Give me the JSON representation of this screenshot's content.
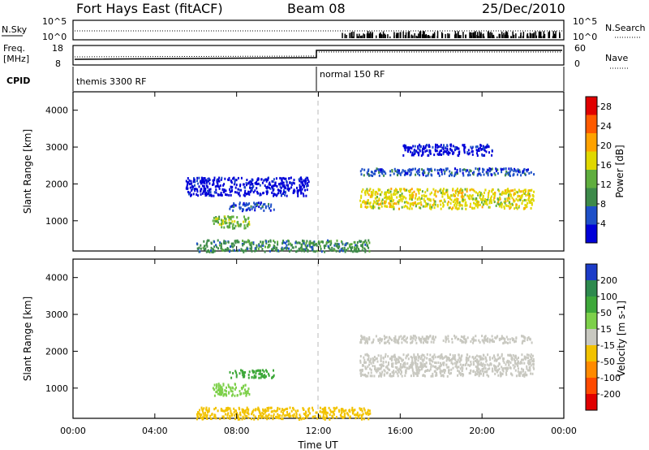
{
  "header": {
    "station": "Fort Hays East (fitACF)",
    "beam": "Beam 08",
    "date": "25/Dec/2010"
  },
  "noise_panel": {
    "left_label": "N.Sky",
    "right_label": "N.Search",
    "left_ticks": [
      "10^5",
      "10^0"
    ],
    "right_ticks": [
      "10^5",
      "10^0"
    ]
  },
  "freq_panel": {
    "left_label_1": "Freq.",
    "left_label_2": "[MHz]",
    "left_ticks": [
      "18",
      "8"
    ],
    "right_ticks": [
      "60",
      "0"
    ],
    "right_label": "Nave"
  },
  "cpid_panel": {
    "label": "CPID",
    "modes": [
      {
        "name": "themis 3300 RF",
        "start_hour": 0,
        "end_hour": 12
      },
      {
        "name": "normal 150 RF",
        "start_hour": 12,
        "end_hour": 24
      }
    ]
  },
  "chart_data": [
    {
      "type": "heatmap",
      "title": "",
      "xlabel": "",
      "ylabel": "Slant Range [km]",
      "x_range_hours": [
        0,
        24
      ],
      "ylim": [
        180,
        4500
      ],
      "y_ticks": [
        1000,
        2000,
        3000,
        4000
      ],
      "colorbar": {
        "label": "Power [dB]",
        "ticks": [
          4,
          8,
          12,
          16,
          20,
          24,
          28
        ],
        "range": [
          0,
          30
        ],
        "colors": [
          "#0000d8",
          "#1e50c8",
          "#3d8a4a",
          "#5fae3e",
          "#e0d800",
          "#ffa200",
          "#ff5a00",
          "#e00000"
        ]
      },
      "echo_regions": [
        {
          "t0": 6.8,
          "t1": 8.6,
          "r0": 820,
          "r1": 1150,
          "level": 14
        },
        {
          "t0": 7.6,
          "t1": 9.8,
          "r0": 1300,
          "r1": 1520,
          "level": 5
        },
        {
          "t0": 5.5,
          "t1": 11.5,
          "r0": 1700,
          "r1": 2200,
          "level": 3
        },
        {
          "t0": 14.0,
          "t1": 22.5,
          "r0": 1350,
          "r1": 1900,
          "level": 17
        },
        {
          "t0": 14.0,
          "t1": 22.5,
          "r0": 2250,
          "r1": 2450,
          "level": 6
        },
        {
          "t0": 16.0,
          "t1": 20.5,
          "r0": 2800,
          "r1": 3100,
          "level": 3
        },
        {
          "t0": 6.0,
          "t1": 14.5,
          "r0": 180,
          "r1": 500,
          "level": 9
        }
      ]
    },
    {
      "type": "heatmap",
      "title": "",
      "xlabel": "Time UT",
      "ylabel": "Slant Range [km]",
      "x_range_hours": [
        0,
        24
      ],
      "x_tick_labels": [
        "00:00",
        "04:00",
        "08:00",
        "12:00",
        "16:00",
        "20:00",
        "00:00"
      ],
      "ylim": [
        180,
        4500
      ],
      "y_ticks": [
        1000,
        2000,
        3000,
        4000
      ],
      "colorbar": {
        "label": "Velocity [m s-1]",
        "ticks": [
          200,
          100,
          50,
          15,
          -15,
          -50,
          -100,
          -200
        ],
        "colors": [
          "#1c3cc8",
          "#2e8a4e",
          "#3ea83a",
          "#7dd04a",
          "#c8c8c0",
          "#f2c200",
          "#ff8a00",
          "#ff4a00",
          "#e00000"
        ]
      },
      "echo_regions": [
        {
          "t0": 6.8,
          "t1": 8.6,
          "r0": 820,
          "r1": 1150,
          "value": 20
        },
        {
          "t0": 7.6,
          "t1": 9.8,
          "r0": 1300,
          "r1": 1520,
          "value": 60
        },
        {
          "t0": 14.0,
          "t1": 22.5,
          "r0": 1350,
          "r1": 1950,
          "value": 0
        },
        {
          "t0": 14.0,
          "t1": 22.5,
          "r0": 2250,
          "r1": 2450,
          "value": 0
        },
        {
          "t0": 6.0,
          "t1": 14.5,
          "r0": 180,
          "r1": 500,
          "value": -30
        }
      ]
    }
  ]
}
